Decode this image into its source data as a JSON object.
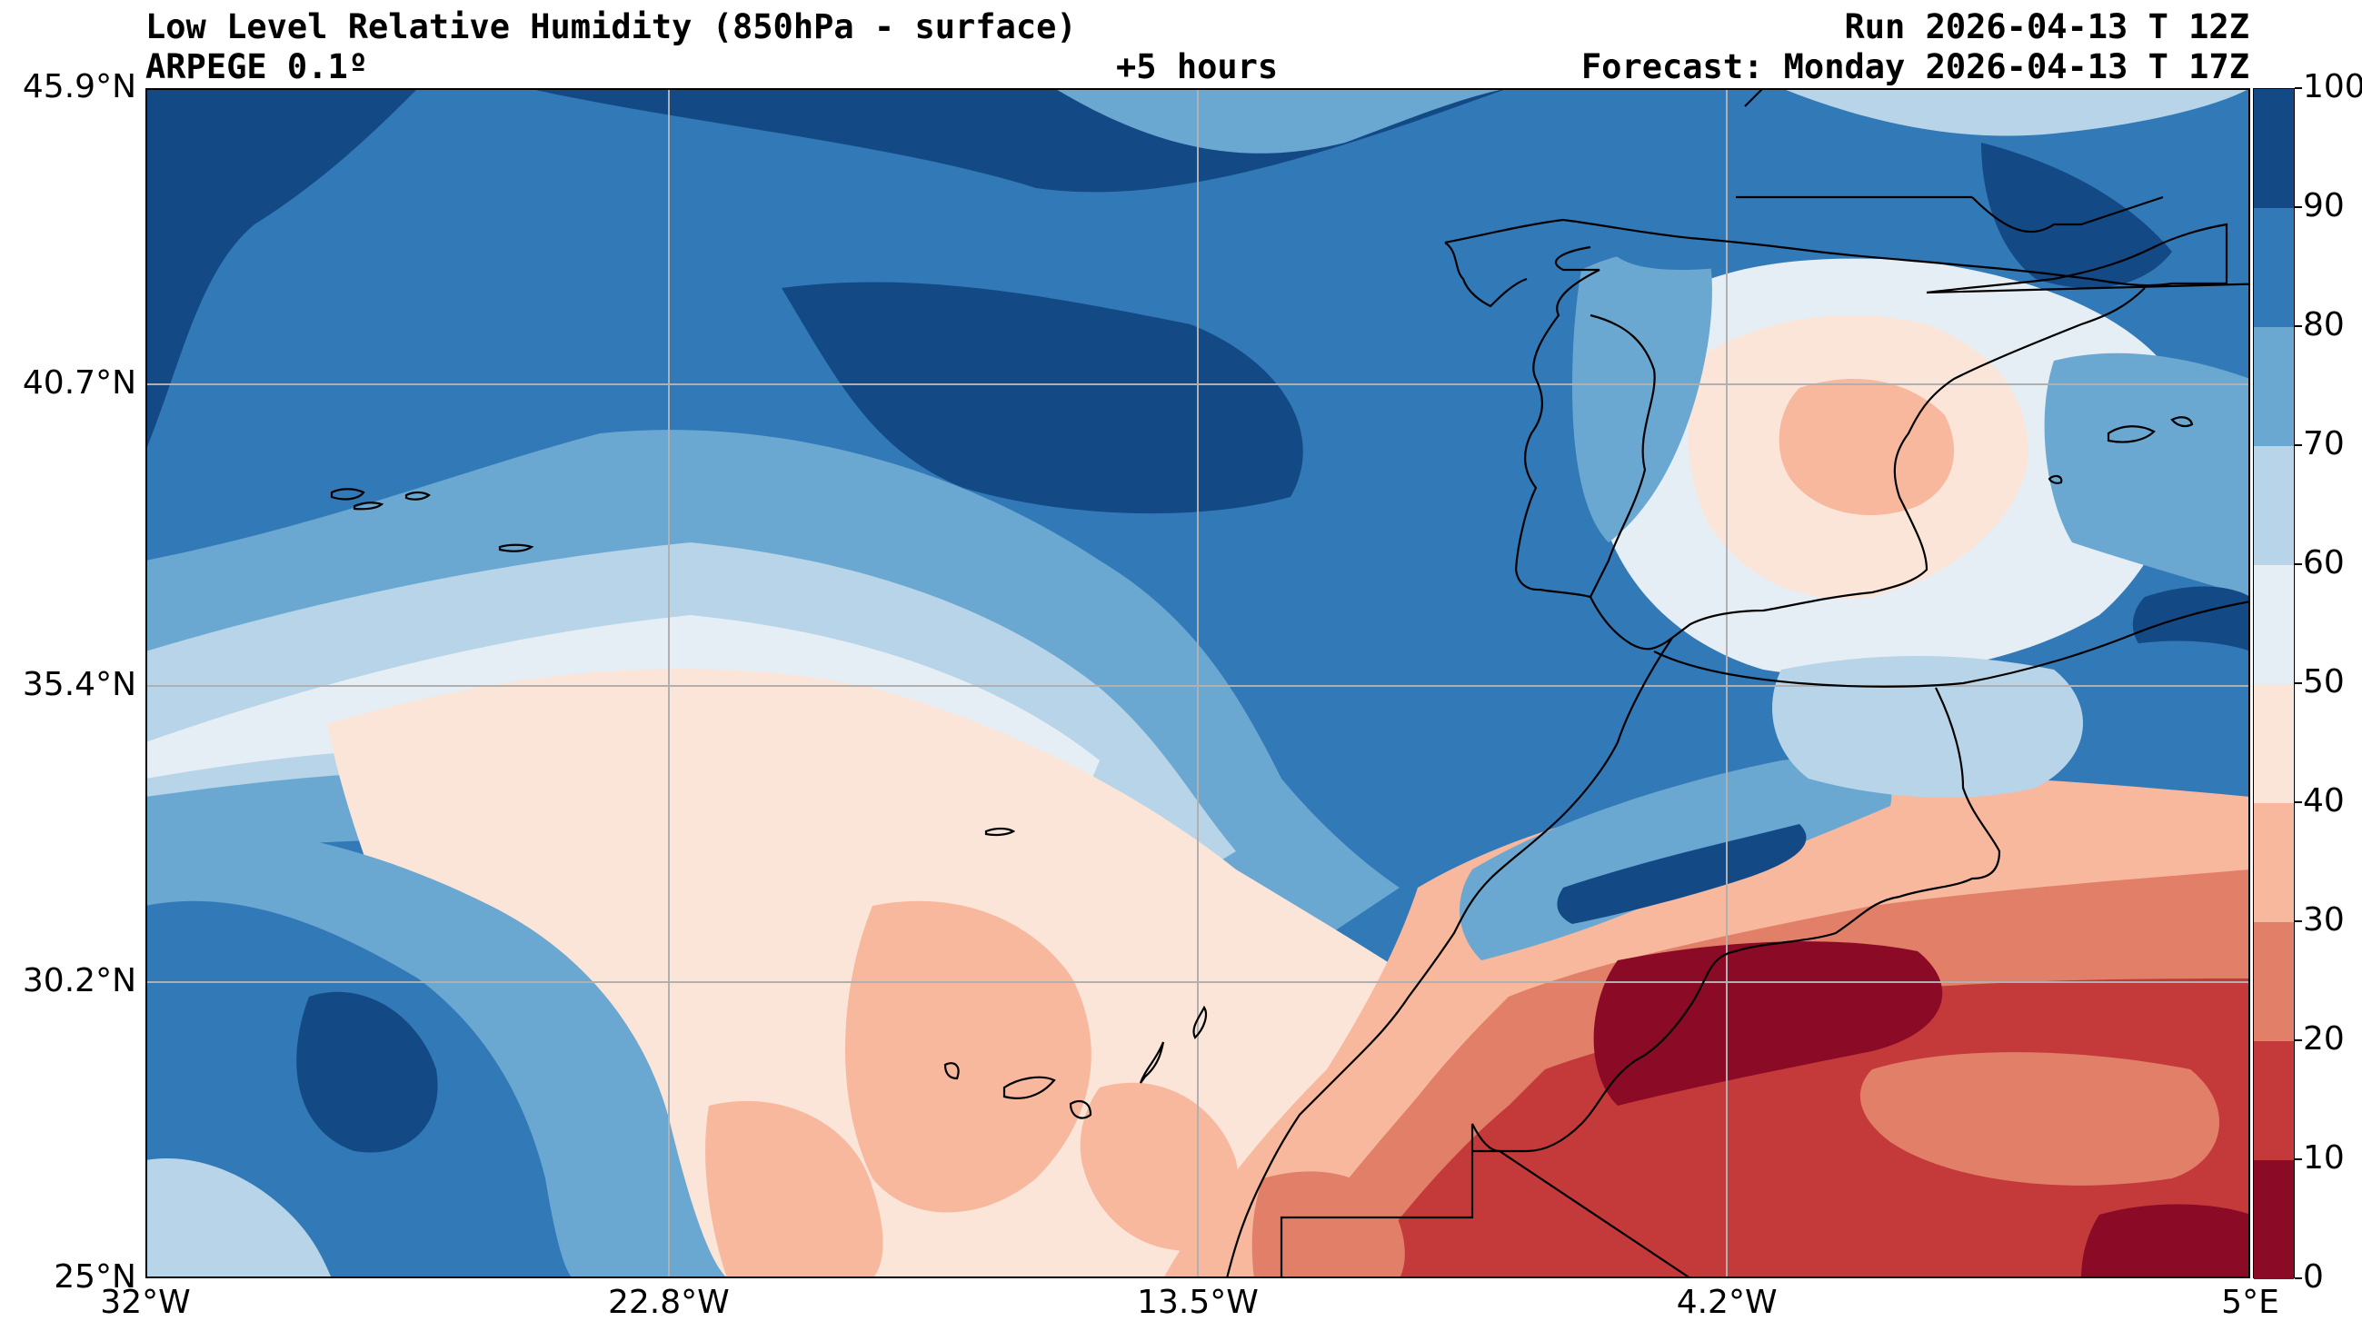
{
  "header": {
    "title": "Low Level Relative Humidity (850hPa - surface)",
    "model": "ARPEGE 0.1º",
    "lead": "+5 hours",
    "run": "Run 2026-04-13 T 12Z",
    "forecast": "Forecast: Monday 2026-04-13 T 17Z"
  },
  "map": {
    "lat_range": [
      25,
      45.9
    ],
    "lon_range": [
      -32,
      5
    ],
    "lat_ticks": [
      {
        "value": 45.9,
        "label": "45.9°N"
      },
      {
        "value": 40.7,
        "label": "40.7°N"
      },
      {
        "value": 35.4,
        "label": "35.4°N"
      },
      {
        "value": 30.2,
        "label": "30.2°N"
      },
      {
        "value": 25.0,
        "label": "25°N"
      }
    ],
    "lon_ticks": [
      {
        "value": -32,
        "label": "32°W"
      },
      {
        "value": -22.8,
        "label": "22.8°W"
      },
      {
        "value": -13.5,
        "label": "13.5°W"
      },
      {
        "value": -4.2,
        "label": "4.2°W"
      },
      {
        "value": 5,
        "label": "5°E"
      }
    ],
    "grid": true
  },
  "colorbar": {
    "levels": [
      {
        "min": 0,
        "max": 10,
        "color": "#8b0a26"
      },
      {
        "min": 10,
        "max": 20,
        "color": "#c43a3a"
      },
      {
        "min": 20,
        "max": 30,
        "color": "#e27f68"
      },
      {
        "min": 30,
        "max": 40,
        "color": "#f7b89d"
      },
      {
        "min": 40,
        "max": 50,
        "color": "#fbe5d9"
      },
      {
        "min": 50,
        "max": 60,
        "color": "#e6eef5"
      },
      {
        "min": 60,
        "max": 70,
        "color": "#b7d4e8"
      },
      {
        "min": 70,
        "max": 80,
        "color": "#6aa8d2"
      },
      {
        "min": 80,
        "max": 90,
        "color": "#3279b8"
      },
      {
        "min": 90,
        "max": 100,
        "color": "#134a86"
      }
    ],
    "tick_labels": [
      "0",
      "10",
      "20",
      "30",
      "40",
      "50",
      "60",
      "70",
      "80",
      "90",
      "100"
    ]
  }
}
